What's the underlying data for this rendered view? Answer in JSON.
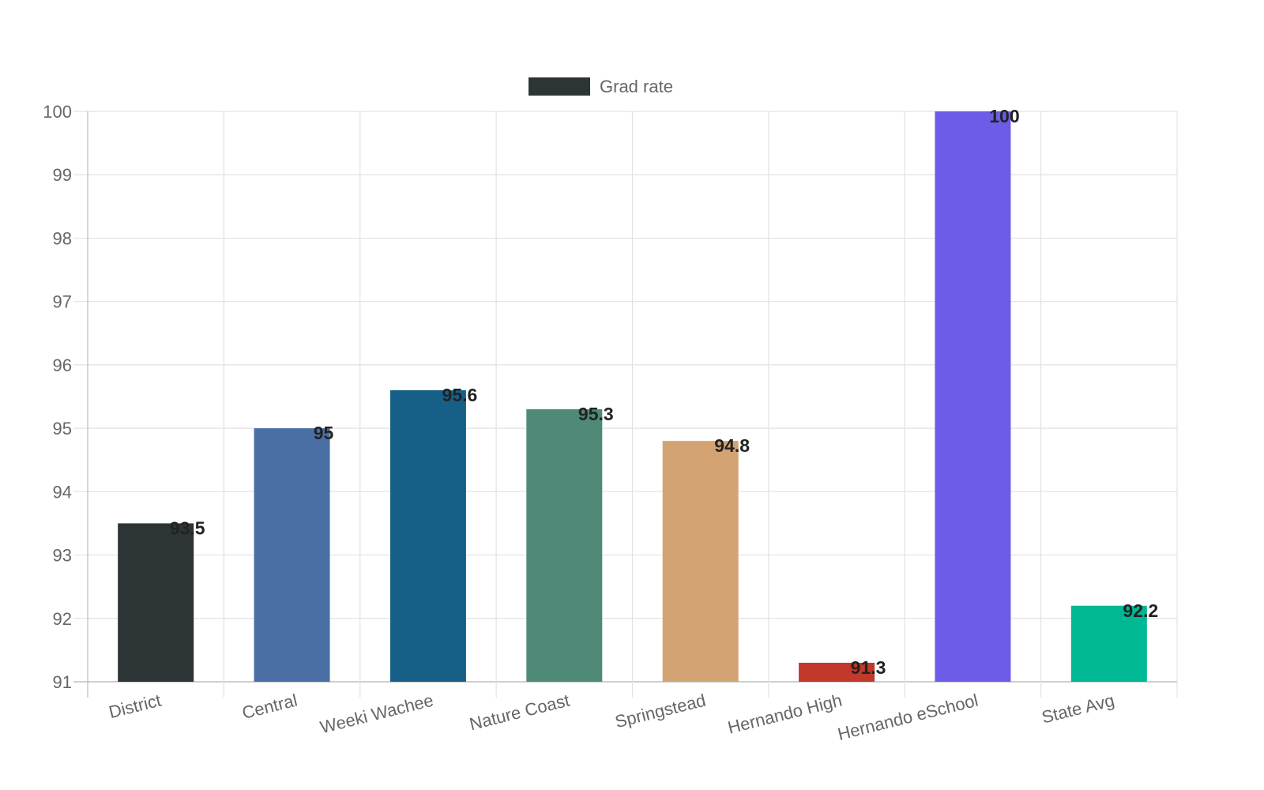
{
  "chart_data": {
    "type": "bar",
    "categories": [
      "District",
      "Central",
      "Weeki Wachee",
      "Nature Coast",
      "Springstead",
      "Hernando High",
      "Hernando eSchool",
      "State Avg"
    ],
    "series": [
      {
        "name": "Grad rate",
        "values": [
          93.5,
          95,
          95.6,
          95.3,
          94.8,
          91.3,
          100,
          92.2
        ]
      }
    ],
    "data_labels": [
      "93.5",
      "95",
      "95.6",
      "95.3",
      "94.8",
      "91.3",
      "100",
      "92.2"
    ],
    "bar_colors": [
      "#2d3436",
      "#4a6fa5",
      "#166088",
      "#4f8a79",
      "#d4a373",
      "#c0392b",
      "#6c5ce7",
      "#00b894"
    ],
    "legend": {
      "label": "Grad rate",
      "color": "#2d3436",
      "position": "top"
    },
    "yticks": [
      "91",
      "92",
      "93",
      "94",
      "95",
      "96",
      "97",
      "98",
      "99",
      "100"
    ],
    "ylim": [
      91,
      100
    ],
    "grid": true,
    "title": "",
    "xlabel": "",
    "ylabel": ""
  }
}
